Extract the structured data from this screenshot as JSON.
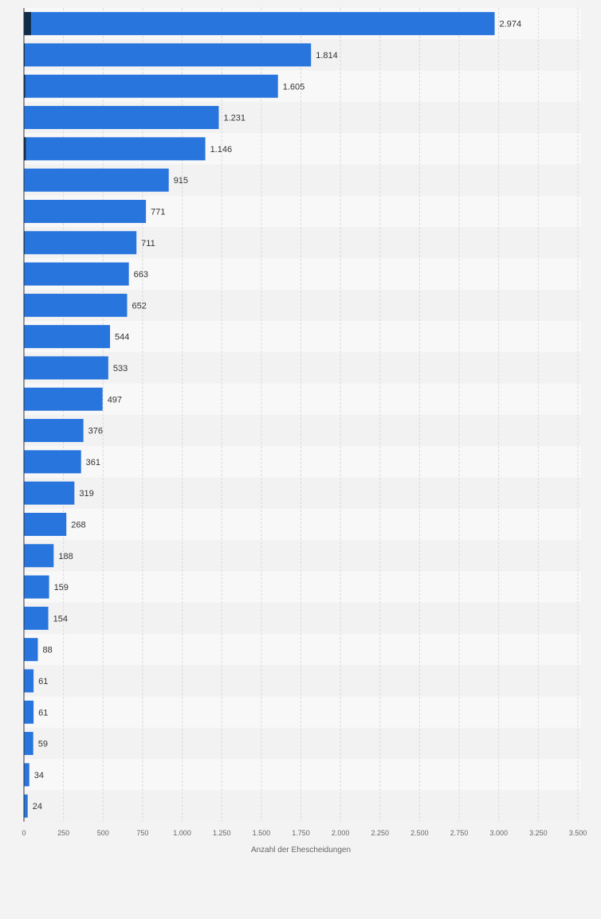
{
  "chart_data": {
    "type": "bar",
    "orientation": "horizontal",
    "title": "",
    "xlabel": "Anzahl der Ehescheidungen",
    "ylabel": "",
    "xlim": [
      0,
      3500
    ],
    "grid": true,
    "legend": "none",
    "x_ticks": [
      "0",
      "250",
      "500",
      "750",
      "1.000",
      "1.250",
      "1.500",
      "1.750",
      "2.000",
      "2.250",
      "2.500",
      "2.750",
      "3.000",
      "3.250",
      "3.500"
    ],
    "x_tick_values": [
      0,
      250,
      500,
      750,
      1000,
      1250,
      1500,
      1750,
      2000,
      2250,
      2500,
      2750,
      3000,
      3250,
      3500
    ],
    "values": [
      2974,
      1814,
      1605,
      1231,
      1146,
      915,
      771,
      711,
      663,
      652,
      544,
      533,
      497,
      376,
      361,
      319,
      268,
      188,
      159,
      154,
      88,
      61,
      61,
      59,
      34,
      24
    ],
    "value_labels": [
      "2.974",
      "1.814",
      "1.605",
      "1.231",
      "1.146",
      "915",
      "771",
      "711",
      "663",
      "652",
      "544",
      "533",
      "497",
      "376",
      "361",
      "319",
      "268",
      "188",
      "159",
      "154",
      "88",
      "61",
      "61",
      "59",
      "34",
      "24"
    ],
    "highlight_values": [
      45,
      5,
      8,
      0,
      12,
      0,
      0,
      4,
      0,
      0,
      0,
      0,
      0,
      0,
      0,
      0,
      0,
      0,
      0,
      0,
      0,
      0,
      0,
      0,
      0,
      0
    ],
    "colors": {
      "bar": "#2876dd",
      "highlight": "#0f2d4a",
      "row_even": "#f8f8f8",
      "row_odd": "#f2f2f2",
      "grid": "#d9d9d9",
      "axis": "#333333",
      "tick_text": "#666666",
      "value_text": "#333333"
    }
  }
}
